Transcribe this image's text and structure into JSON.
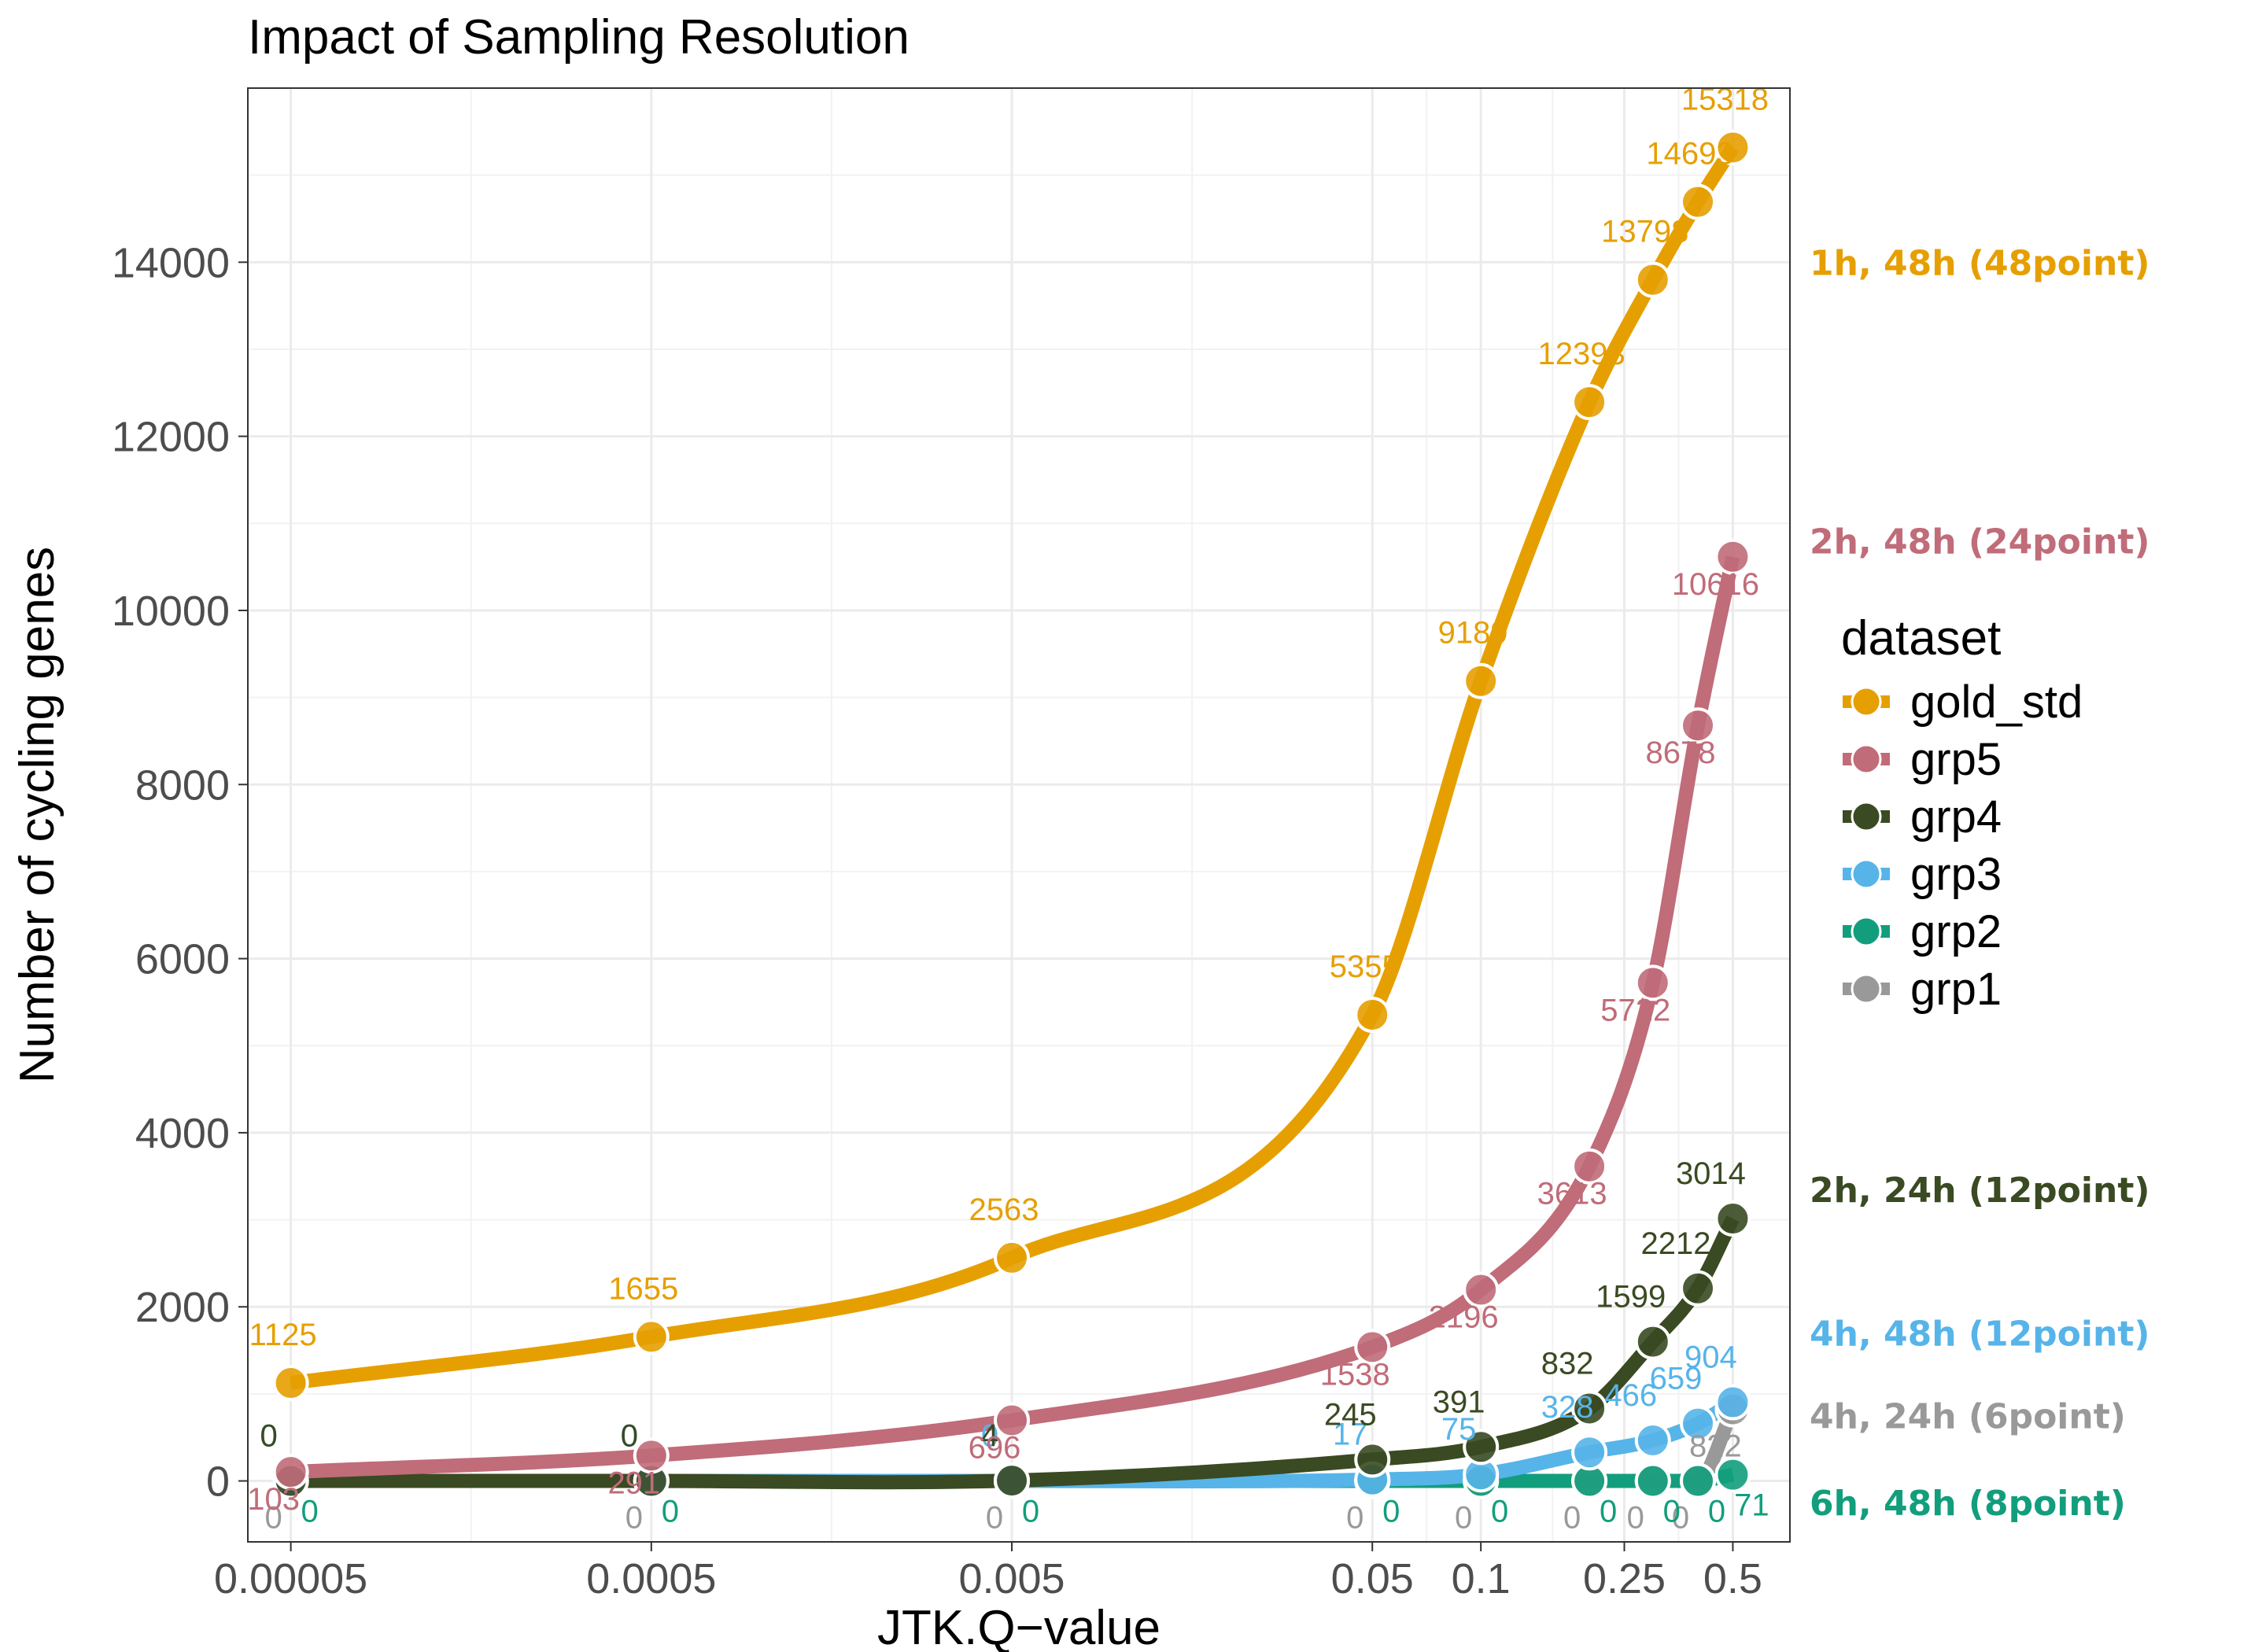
{
  "chart_data": {
    "type": "line",
    "title": "Impact of Sampling Resolution",
    "xlabel": "JTK.Q−value",
    "ylabel": "Number of cycling genes",
    "x_scale": "log",
    "xlim": [
      3.8e-05,
      0.72
    ],
    "ylim": [
      -700,
      16000
    ],
    "x_ticks": [
      {
        "value": 5e-05,
        "label": "0.00005"
      },
      {
        "value": 0.0005,
        "label": "0.0005"
      },
      {
        "value": 0.005,
        "label": "0.005"
      },
      {
        "value": 0.05,
        "label": "0.05"
      },
      {
        "value": 0.1,
        "label": "0.1"
      },
      {
        "value": 0.25,
        "label": "0.25"
      },
      {
        "value": 0.5,
        "label": "0.5"
      }
    ],
    "y_ticks": [
      {
        "value": 0,
        "label": "0"
      },
      {
        "value": 2000,
        "label": "2000"
      },
      {
        "value": 4000,
        "label": "4000"
      },
      {
        "value": 6000,
        "label": "6000"
      },
      {
        "value": 8000,
        "label": "8000"
      },
      {
        "value": 10000,
        "label": "10000"
      },
      {
        "value": 12000,
        "label": "12000"
      },
      {
        "value": 14000,
        "label": "14000"
      }
    ],
    "grid": true,
    "legend": {
      "title": "dataset",
      "position": "right"
    },
    "series": [
      {
        "name": "gold_std",
        "color": "#E69F00",
        "x": [
          5e-05,
          0.0005,
          0.005,
          0.05,
          0.1,
          0.2,
          0.3,
          0.4,
          0.5
        ],
        "values": [
          1125,
          1655,
          2563,
          5355,
          9189,
          12393,
          13798,
          14693,
          15318
        ],
        "labels": [
          "1125",
          "1655",
          "2563",
          "5355",
          "9189",
          "12393",
          "13798",
          "14693",
          "15318"
        ],
        "annotation": "1h, 48h (48point)"
      },
      {
        "name": "grp5",
        "color": "#C06C79",
        "x": [
          5e-05,
          0.0005,
          0.005,
          0.05,
          0.1,
          0.2,
          0.3,
          0.4,
          0.5
        ],
        "values": [
          103,
          291,
          696,
          1538,
          2196,
          3613,
          5722,
          8678,
          10616
        ],
        "labels": [
          "103",
          "291",
          "696",
          "1538",
          "2196",
          "3613",
          "5722",
          "8678",
          "10616"
        ],
        "annotation": "2h, 48h (24point)"
      },
      {
        "name": "grp4",
        "color": "#3A4A22",
        "x": [
          5e-05,
          0.0005,
          0.005,
          0.05,
          0.1,
          0.2,
          0.3,
          0.4,
          0.5
        ],
        "values": [
          0,
          0,
          4,
          245,
          391,
          832,
          1599,
          2212,
          3014
        ],
        "labels": [
          "0",
          "0",
          "4",
          "245",
          "391",
          "832",
          "1599",
          "2212",
          "3014"
        ],
        "annotation": "2h, 24h (12point)"
      },
      {
        "name": "grp3",
        "color": "#56B4E9",
        "x": [
          5e-05,
          0.0005,
          0.005,
          0.05,
          0.1,
          0.2,
          0.3,
          0.4,
          0.5
        ],
        "values": [
          0,
          0,
          0,
          17,
          75,
          328,
          466,
          659,
          904
        ],
        "labels": [
          "0",
          "0",
          "0",
          "17",
          "75",
          "328",
          "466",
          "659",
          "904"
        ],
        "annotation": "4h, 48h (12point)"
      },
      {
        "name": "grp2",
        "color": "#129E7C",
        "x": [
          5e-05,
          0.0005,
          0.005,
          0.05,
          0.1,
          0.2,
          0.3,
          0.4,
          0.5
        ],
        "values": [
          0,
          0,
          0,
          0,
          0,
          0,
          0,
          0,
          71
        ],
        "labels": [
          "0",
          "0",
          "0",
          "0",
          "0",
          "0",
          "0",
          "0",
          "71"
        ],
        "annotation": "6h, 48h (8point)"
      },
      {
        "name": "grp1",
        "color": "#999999",
        "x": [
          5e-05,
          0.0005,
          0.005,
          0.05,
          0.1,
          0.2,
          0.3,
          0.4,
          0.5
        ],
        "values": [
          0,
          0,
          0,
          0,
          0,
          0,
          0,
          0,
          822
        ],
        "labels": [
          "0",
          "0",
          "0",
          "0",
          "0",
          "0",
          "0",
          "0",
          "822"
        ],
        "annotation": "4h, 24h (6point)"
      }
    ]
  }
}
